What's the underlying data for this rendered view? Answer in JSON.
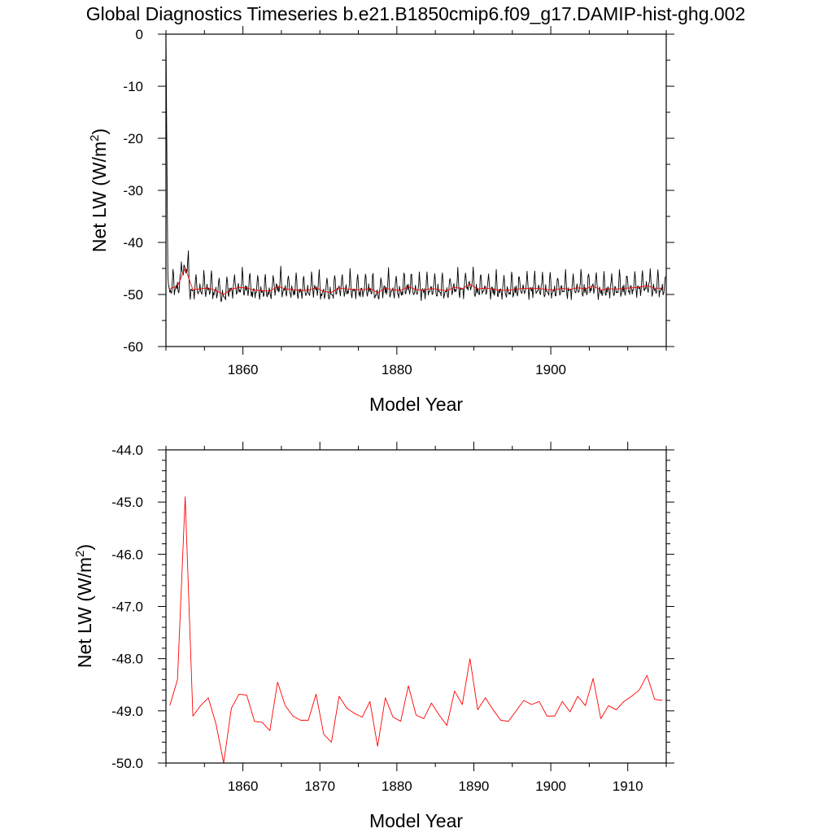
{
  "title": "Global Diagnostics Timeseries b.e21.B1850cmip6.f09_g17.DAMIP-hist-ghg.002",
  "chart_data": [
    {
      "type": "line",
      "xlabel": "Model Year",
      "ylabel_main": "Net LW (W/m",
      "ylabel_sup": "2",
      "ylabel_close": ")",
      "xlim": [
        1850,
        1915
      ],
      "ylim": [
        -60,
        0
      ],
      "xticks": [
        1860,
        1880,
        1900
      ],
      "xtick_labels": [
        "1860",
        "1880",
        "1900"
      ],
      "yticks": [
        0,
        -10,
        -20,
        -30,
        -40,
        -50,
        -60
      ],
      "ytick_labels": [
        "0",
        "-10",
        "-20",
        "-30",
        "-40",
        "-50",
        "-60"
      ],
      "series": [
        {
          "kind": "monthly",
          "color": "#000000",
          "start_x": 1850.0,
          "start_values": [
            0,
            -16,
            -32,
            -46.5
          ],
          "seasonal_cycle": [
            -47.5,
            -49.8,
            -50.2,
            -49.6,
            -48.8,
            -48.9,
            -49.1,
            -49.6,
            -50.1,
            -49.3,
            -47.4,
            -45.9
          ],
          "cycle_anchor_year": 1850,
          "cycle_annual_baseline": -49.0,
          "annual_source": "annual_mean"
        },
        {
          "kind": "annual",
          "color": "#ff0000",
          "ref": "annual_mean"
        }
      ]
    },
    {
      "type": "line",
      "xlabel": "Model Year",
      "ylabel_main": "Net LW (W/m",
      "ylabel_sup": "2",
      "ylabel_close": ")",
      "xlim": [
        1850,
        1915
      ],
      "ylim": [
        -50,
        -44
      ],
      "xticks": [
        1860,
        1870,
        1880,
        1890,
        1900,
        1910
      ],
      "xtick_labels": [
        "1860",
        "1870",
        "1880",
        "1890",
        "1900",
        "1910"
      ],
      "yticks": [
        -44,
        -45,
        -46,
        -47,
        -48,
        -49,
        -50
      ],
      "ytick_labels": [
        "-44.0",
        "-45.0",
        "-46.0",
        "-47.0",
        "-48.0",
        "-49.0",
        "-50.0"
      ],
      "series": [
        {
          "kind": "annual",
          "color": "#ff0000",
          "ref": "annual_mean"
        }
      ]
    }
  ],
  "annual_mean": {
    "x": [
      1850.5,
      1851.5,
      1852.5,
      1853.5,
      1854.5,
      1855.5,
      1856.5,
      1857.5,
      1858.5,
      1859.5,
      1860.5,
      1861.5,
      1862.5,
      1863.5,
      1864.5,
      1865.5,
      1866.5,
      1867.5,
      1868.5,
      1869.5,
      1870.5,
      1871.5,
      1872.5,
      1873.5,
      1874.5,
      1875.5,
      1876.5,
      1877.5,
      1878.5,
      1879.5,
      1880.5,
      1881.5,
      1882.5,
      1883.5,
      1884.5,
      1885.5,
      1886.5,
      1887.5,
      1888.5,
      1889.5,
      1890.5,
      1891.5,
      1892.5,
      1893.5,
      1894.5,
      1895.5,
      1896.5,
      1897.5,
      1898.5,
      1899.5,
      1900.5,
      1901.5,
      1902.5,
      1903.5,
      1904.5,
      1905.5,
      1906.5,
      1907.5,
      1908.5,
      1909.5,
      1910.5,
      1911.5,
      1912.5,
      1913.5,
      1914.5
    ],
    "y": [
      -48.9,
      -48.4,
      -44.9,
      -49.1,
      -48.9,
      -48.75,
      -49.25,
      -50.0,
      -48.95,
      -48.68,
      -48.7,
      -49.2,
      -49.22,
      -49.38,
      -48.45,
      -48.9,
      -49.1,
      -49.18,
      -49.18,
      -48.68,
      -49.45,
      -49.6,
      -48.72,
      -48.95,
      -49.05,
      -49.12,
      -48.82,
      -49.68,
      -48.75,
      -49.12,
      -49.2,
      -48.52,
      -49.08,
      -49.15,
      -48.85,
      -49.08,
      -49.28,
      -48.62,
      -48.88,
      -48.0,
      -48.98,
      -48.75,
      -48.98,
      -49.18,
      -49.2,
      -49.0,
      -48.8,
      -48.88,
      -48.82,
      -49.1,
      -49.1,
      -48.82,
      -49.02,
      -48.72,
      -48.9,
      -48.38,
      -49.15,
      -48.9,
      -48.98,
      -48.82,
      -48.72,
      -48.6,
      -48.32,
      -48.78,
      -48.8
    ]
  }
}
